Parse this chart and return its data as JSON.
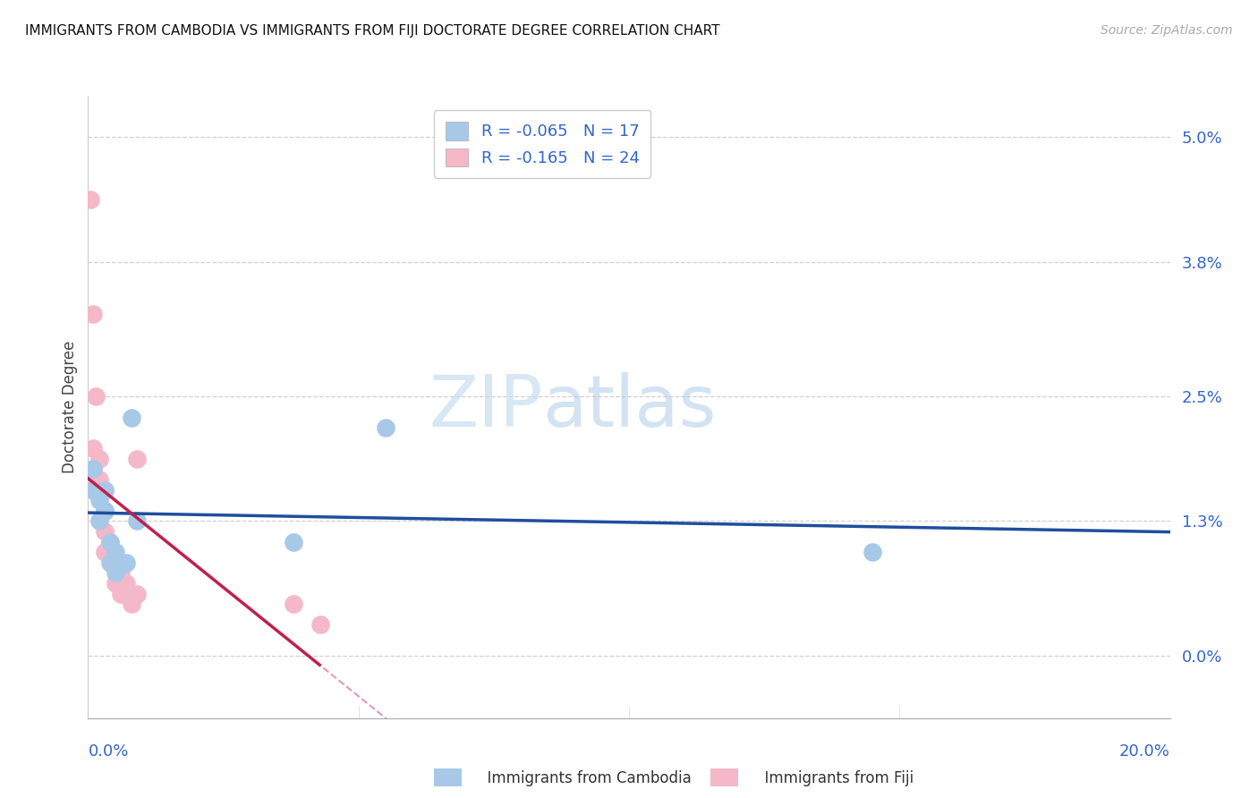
{
  "title": "IMMIGRANTS FROM CAMBODIA VS IMMIGRANTS FROM FIJI DOCTORATE DEGREE CORRELATION CHART",
  "source": "Source: ZipAtlas.com",
  "ylabel": "Doctorate Degree",
  "xlim": [
    0.0,
    0.2
  ],
  "ylim": [
    -0.006,
    0.054
  ],
  "ytick_vals": [
    0.0,
    0.013,
    0.025,
    0.038,
    0.05
  ],
  "ytick_labels": [
    "0.0%",
    "1.3%",
    "2.5%",
    "3.8%",
    "5.0%"
  ],
  "xtick_vals": [
    0.0,
    0.05,
    0.1,
    0.15,
    0.2
  ],
  "watermark_zip": "ZIP",
  "watermark_atlas": "atlas",
  "color_cambodia": "#a8c8e8",
  "color_fiji": "#f5b8c8",
  "line_color_cambodia": "#1f4e9e",
  "line_color_fiji": "#c0204a",
  "legend_r1": "R = -0.065",
  "legend_n1": "N = 17",
  "legend_r2": "R = -0.165",
  "legend_n2": "N = 24",
  "legend_label1": "Immigrants from Cambodia",
  "legend_label2": "Immigrants from Fiji",
  "cambodia_x": [
    0.001,
    0.001,
    0.002,
    0.002,
    0.003,
    0.003,
    0.003,
    0.004,
    0.004,
    0.005,
    0.005,
    0.007,
    0.008,
    0.009,
    0.038,
    0.055,
    0.145
  ],
  "cambodia_y": [
    0.018,
    0.016,
    0.015,
    0.013,
    0.014,
    0.016,
    0.014,
    0.011,
    0.009,
    0.01,
    0.008,
    0.009,
    0.023,
    0.013,
    0.011,
    0.022,
    0.01
  ],
  "fiji_x": [
    0.0005,
    0.001,
    0.001,
    0.001,
    0.001,
    0.0015,
    0.002,
    0.002,
    0.003,
    0.003,
    0.003,
    0.003,
    0.004,
    0.004,
    0.005,
    0.005,
    0.006,
    0.006,
    0.007,
    0.008,
    0.009,
    0.009,
    0.038,
    0.043
  ],
  "fiji_y": [
    0.044,
    0.033,
    0.02,
    0.018,
    0.017,
    0.025,
    0.019,
    0.017,
    0.016,
    0.014,
    0.012,
    0.01,
    0.011,
    0.01,
    0.009,
    0.007,
    0.008,
    0.006,
    0.007,
    0.005,
    0.019,
    0.006,
    0.005,
    0.003
  ]
}
